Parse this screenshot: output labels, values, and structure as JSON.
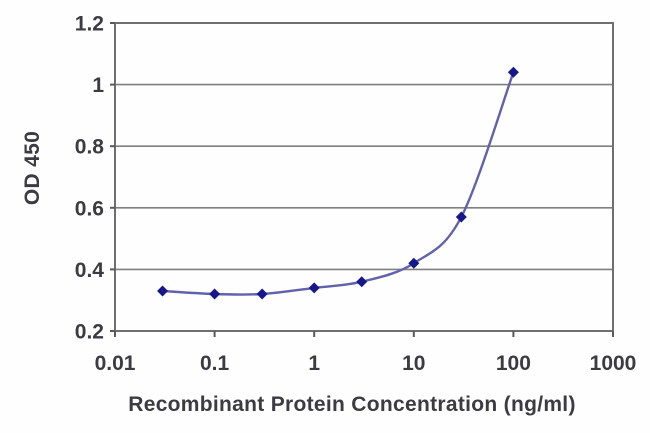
{
  "chart_data": {
    "type": "line",
    "title": "",
    "xlabel": "Recombinant Protein Concentration (ng/ml)",
    "ylabel": "OD 450",
    "x_scale": "log",
    "xlim": [
      0.01,
      1000
    ],
    "ylim": [
      0.2,
      1.2
    ],
    "x_ticks": {
      "values": [
        0.01,
        0.1,
        1,
        10,
        100,
        1000
      ],
      "labels": [
        "0.01",
        "0.1",
        "1",
        "10",
        "100",
        "1000"
      ]
    },
    "y_ticks": {
      "values": [
        0.2,
        0.4,
        0.6,
        0.8,
        1,
        1.2
      ],
      "labels": [
        "0.2",
        "0.4",
        "0.6",
        "0.8",
        "1",
        "1.2"
      ]
    },
    "grid": "horizontal",
    "legend": "none",
    "series": [
      {
        "name": "OD 450",
        "x": [
          0.03,
          0.1,
          0.3,
          1,
          3,
          10,
          30,
          100
        ],
        "y": [
          0.33,
          0.32,
          0.32,
          0.34,
          0.36,
          0.42,
          0.57,
          1.04
        ],
        "marker": "diamond",
        "line_color": "#6161ad",
        "marker_color": "#17178c"
      }
    ]
  },
  "style": {
    "background": "#fefefe",
    "plot_border_color": "#6f6f6f",
    "gridline_color": "#7f7f7f",
    "tick_color": "#5a5a5a",
    "text_color": "#3b3b42"
  }
}
